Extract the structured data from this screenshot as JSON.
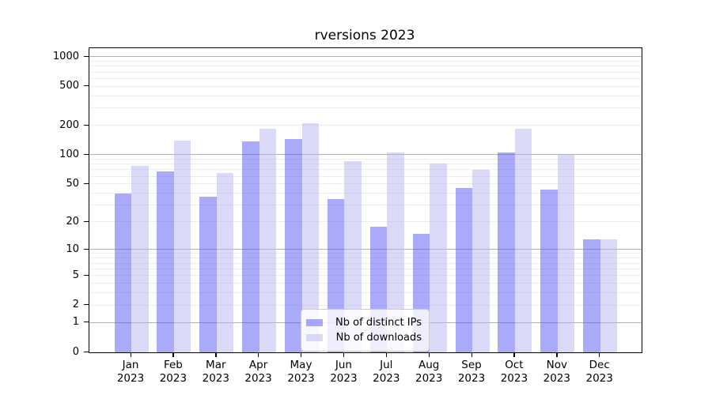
{
  "title": "rversions 2023",
  "chart_data": {
    "type": "bar",
    "title": "rversions 2023",
    "xlabel": "",
    "ylabel": "",
    "scale": "log10(value+1)",
    "ylim": [
      0,
      1230
    ],
    "yticks": [
      0,
      1,
      2,
      5,
      10,
      20,
      50,
      100,
      200,
      500,
      1000
    ],
    "major_gridlines": [
      1,
      10,
      100,
      1000
    ],
    "minor_gridlines": [
      2,
      3,
      4,
      5,
      6,
      7,
      8,
      9,
      20,
      30,
      40,
      50,
      60,
      70,
      80,
      90,
      200,
      300,
      400,
      500,
      600,
      700,
      800,
      900
    ],
    "grid": "horizontal",
    "legend_position": "inside-bottom-center",
    "categories": [
      {
        "month": "Jan",
        "year": "2023"
      },
      {
        "month": "Feb",
        "year": "2023"
      },
      {
        "month": "Mar",
        "year": "2023"
      },
      {
        "month": "Apr",
        "year": "2023"
      },
      {
        "month": "May",
        "year": "2023"
      },
      {
        "month": "Jun",
        "year": "2023"
      },
      {
        "month": "Jul",
        "year": "2023"
      },
      {
        "month": "Aug",
        "year": "2023"
      },
      {
        "month": "Sep",
        "year": "2023"
      },
      {
        "month": "Oct",
        "year": "2023"
      },
      {
        "month": "Nov",
        "year": "2023"
      },
      {
        "month": "Dec",
        "year": "2023"
      }
    ],
    "series": [
      {
        "name": "Nb of distinct IPs",
        "color": "rgba(85, 85, 245, 0.5)",
        "values": [
          40,
          68,
          37,
          138,
          145,
          35,
          18,
          15,
          46,
          106,
          44,
          13
        ]
      },
      {
        "name": "Nb of downloads",
        "color": "rgba(181, 181, 241, 0.5)",
        "values": [
          78,
          140,
          65,
          186,
          212,
          87,
          106,
          82,
          70,
          185,
          100,
          13
        ]
      }
    ]
  },
  "colors": {
    "distinct_ips_bar": "rgba(85, 85, 245, 0.5)",
    "downloads_bar": "rgba(181, 181, 241, 0.5)",
    "major_gridline": "#b0b0b0",
    "minor_gridline": "#ededed",
    "axis_frame": "#000000"
  }
}
